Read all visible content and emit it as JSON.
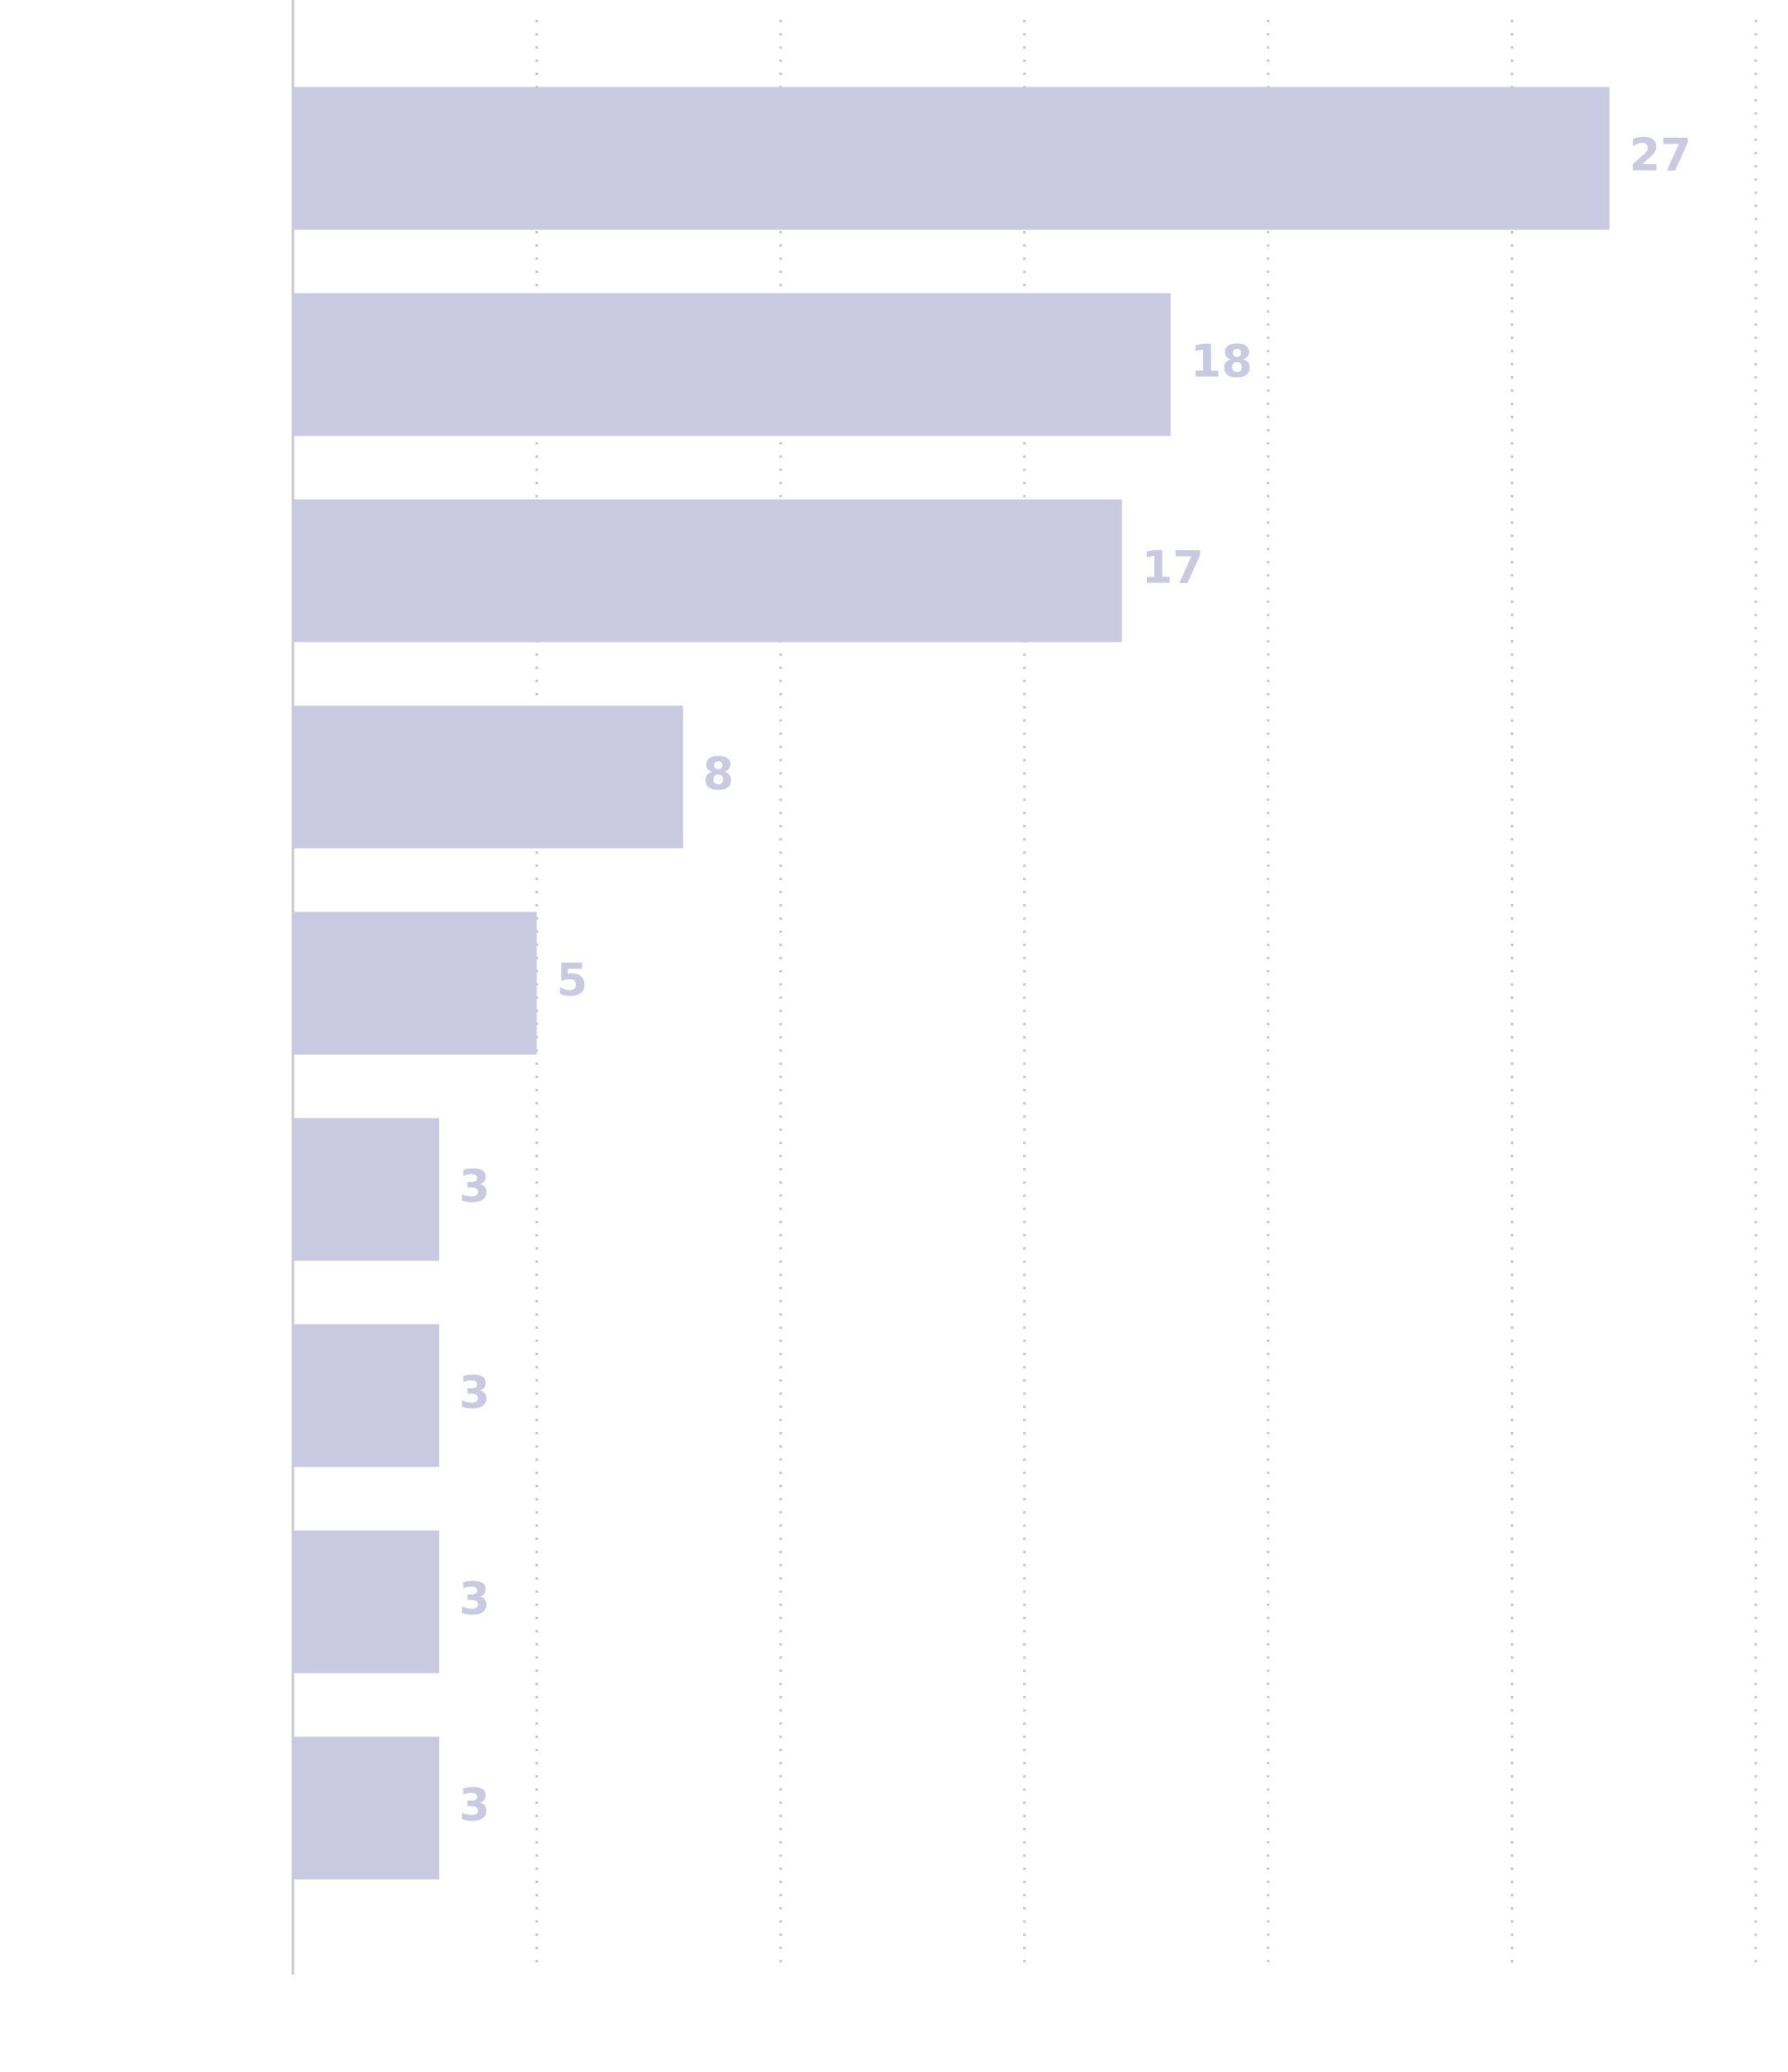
{
  "chart_data": {
    "type": "bar",
    "orientation": "horizontal",
    "categories": [
      null,
      null,
      null,
      null,
      null,
      null,
      null,
      null,
      null
    ],
    "values": [
      27,
      18,
      17,
      8,
      5,
      3,
      3,
      3,
      3
    ],
    "color": "#c9c9e1",
    "xlim": [
      0,
      30
    ],
    "xticks": [
      0,
      5,
      10,
      15,
      20,
      25,
      30
    ],
    "grid": true
  }
}
